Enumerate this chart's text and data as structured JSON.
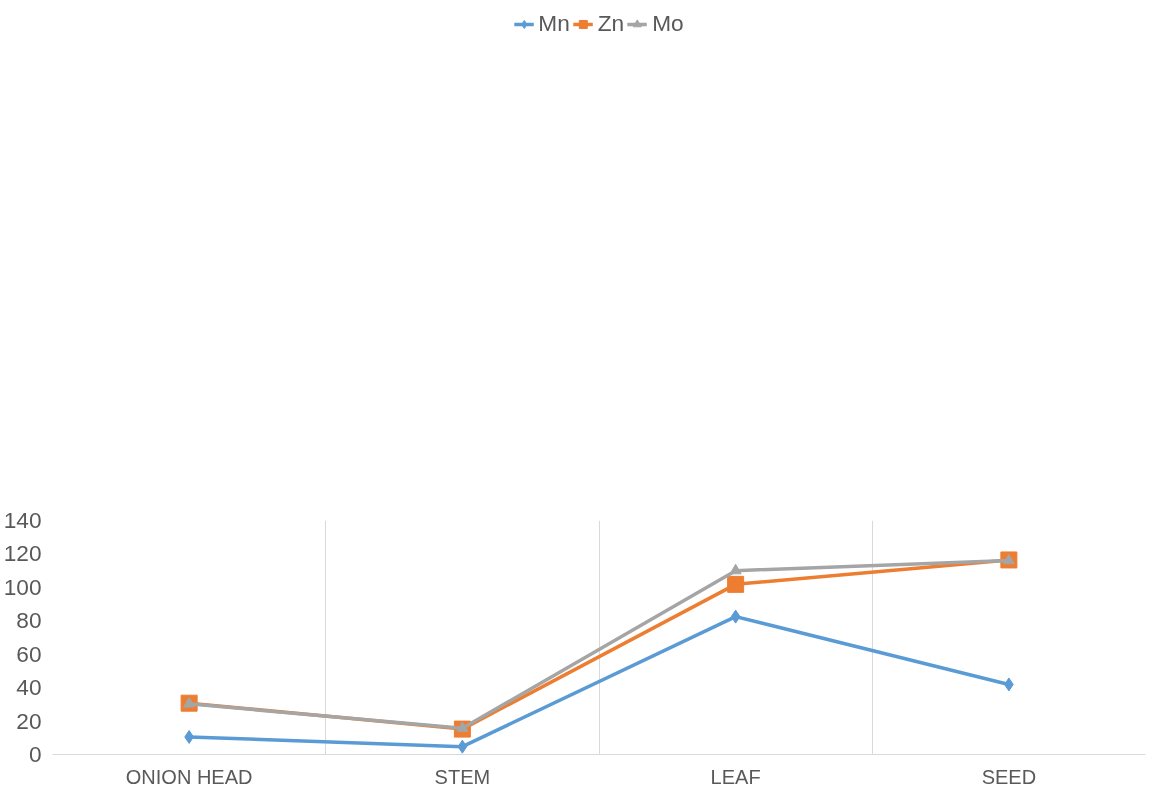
{
  "chart_data": {
    "type": "line",
    "categories": [
      "ONION HEAD",
      "STEM",
      "LEAF",
      "SEED"
    ],
    "series": [
      {
        "name": "Mn",
        "color": "#5b9bd5",
        "marker": "diamond",
        "values": [
          10.5,
          4.7,
          82.5,
          41.9
        ]
      },
      {
        "name": "Zn",
        "color": "#ed7d31",
        "marker": "square",
        "values": [
          30.7,
          15.2,
          101.8,
          116.4
        ]
      },
      {
        "name": "Mo",
        "color": "#a5a5a5",
        "marker": "triangle",
        "values": [
          30.3,
          15.7,
          110,
          116
        ]
      }
    ],
    "ylim": [
      0,
      140
    ],
    "yticks": [
      0,
      20,
      40,
      60,
      80,
      100,
      120,
      140
    ],
    "grid": "x",
    "legend": "top",
    "line_style": "solid"
  }
}
